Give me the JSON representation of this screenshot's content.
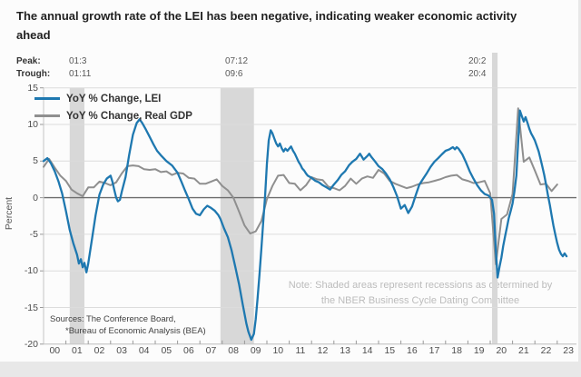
{
  "title": {
    "line1": "The annual growth rate of the LEI has been negative, indicating weaker economic activity",
    "line2": "ahead"
  },
  "header": {
    "peak_label": "Peak:",
    "trough_label": "Trough:",
    "recessions": [
      {
        "peak": "01:3",
        "trough": "01:11"
      },
      {
        "peak": "07:12",
        "trough": "09:6"
      },
      {
        "peak": "20:2",
        "trough": "20:4"
      }
    ]
  },
  "notes": {
    "note_line1": "Note: Shaded areas represent recessions as determined by",
    "note_line2": "the NBER Business Cycle Dating Committee",
    "sources_line1": "Sources: The Conference Board,",
    "sources_line2": "*Bureau of Economic Analysis (BEA)"
  },
  "colors": {
    "lei_line": "#1e78b0",
    "gdp_line": "#8f8f8f",
    "recession_band": "#d8d8d8",
    "gridline": "#dcdcdc",
    "zero_line": "#6d6d6d",
    "axis": "#c4c4c4"
  },
  "chart_data": {
    "type": "line",
    "ylabel": "Percent",
    "ylim": [
      -20,
      15
    ],
    "ytick_step": 5,
    "xlim": [
      2000,
      2023.5
    ],
    "grid": true,
    "legend_position": "top-left",
    "xtick_labels": [
      "00",
      "01",
      "02",
      "03",
      "04",
      "05",
      "06",
      "07",
      "08",
      "09",
      "10",
      "11",
      "12",
      "13",
      "14",
      "15",
      "16",
      "17",
      "18",
      "19",
      "20",
      "21",
      "22",
      "23"
    ],
    "recession_bands": [
      {
        "from": 2001.17,
        "to": 2001.83
      },
      {
        "from": 2007.92,
        "to": 2009.42
      },
      {
        "from": 2020.08,
        "to": 2020.33,
        "extends_to_header": true
      }
    ],
    "series": [
      {
        "name": "YoY % Change, LEI",
        "color": "#1e78b0",
        "points": [
          [
            2000.0,
            5.0
          ],
          [
            2000.17,
            5.4
          ],
          [
            2000.33,
            4.7
          ],
          [
            2000.5,
            3.6
          ],
          [
            2000.67,
            2.2
          ],
          [
            2000.83,
            0.6
          ],
          [
            2001.0,
            -1.8
          ],
          [
            2001.17,
            -4.4
          ],
          [
            2001.33,
            -6.2
          ],
          [
            2001.5,
            -7.8
          ],
          [
            2001.58,
            -9.0
          ],
          [
            2001.67,
            -8.4
          ],
          [
            2001.75,
            -9.5
          ],
          [
            2001.83,
            -8.9
          ],
          [
            2001.92,
            -10.2
          ],
          [
            2002.0,
            -9.0
          ],
          [
            2002.17,
            -5.6
          ],
          [
            2002.33,
            -2.4
          ],
          [
            2002.5,
            0.4
          ],
          [
            2002.67,
            1.8
          ],
          [
            2002.83,
            2.6
          ],
          [
            2003.0,
            3.0
          ],
          [
            2003.08,
            2.2
          ],
          [
            2003.17,
            1.0
          ],
          [
            2003.25,
            0.0
          ],
          [
            2003.33,
            -0.5
          ],
          [
            2003.42,
            -0.3
          ],
          [
            2003.5,
            0.8
          ],
          [
            2003.67,
            2.8
          ],
          [
            2003.83,
            5.8
          ],
          [
            2004.0,
            8.6
          ],
          [
            2004.17,
            10.2
          ],
          [
            2004.3,
            10.7
          ],
          [
            2004.42,
            10.2
          ],
          [
            2004.58,
            9.3
          ],
          [
            2004.75,
            8.3
          ],
          [
            2004.92,
            7.3
          ],
          [
            2005.08,
            6.4
          ],
          [
            2005.25,
            5.8
          ],
          [
            2005.5,
            5.0
          ],
          [
            2005.75,
            4.4
          ],
          [
            2006.0,
            3.4
          ],
          [
            2006.17,
            2.2
          ],
          [
            2006.33,
            1.0
          ],
          [
            2006.5,
            -0.2
          ],
          [
            2006.67,
            -1.5
          ],
          [
            2006.83,
            -2.2
          ],
          [
            2007.0,
            -2.4
          ],
          [
            2007.17,
            -1.6
          ],
          [
            2007.33,
            -1.1
          ],
          [
            2007.5,
            -1.4
          ],
          [
            2007.67,
            -1.8
          ],
          [
            2007.83,
            -2.4
          ],
          [
            2007.92,
            -2.9
          ],
          [
            2008.08,
            -4.2
          ],
          [
            2008.25,
            -5.4
          ],
          [
            2008.42,
            -7.2
          ],
          [
            2008.58,
            -9.4
          ],
          [
            2008.75,
            -11.8
          ],
          [
            2008.92,
            -14.6
          ],
          [
            2009.08,
            -17.2
          ],
          [
            2009.17,
            -18.3
          ],
          [
            2009.3,
            -19.4
          ],
          [
            2009.42,
            -18.6
          ],
          [
            2009.5,
            -16.6
          ],
          [
            2009.58,
            -13.8
          ],
          [
            2009.67,
            -10.4
          ],
          [
            2009.75,
            -7.0
          ],
          [
            2009.83,
            -3.6
          ],
          [
            2009.92,
            0.2
          ],
          [
            2010.0,
            4.6
          ],
          [
            2010.08,
            7.8
          ],
          [
            2010.17,
            9.2
          ],
          [
            2010.25,
            8.8
          ],
          [
            2010.33,
            8.1
          ],
          [
            2010.42,
            7.4
          ],
          [
            2010.5,
            7.0
          ],
          [
            2010.58,
            7.4
          ],
          [
            2010.67,
            6.7
          ],
          [
            2010.75,
            6.3
          ],
          [
            2010.83,
            6.7
          ],
          [
            2010.92,
            6.4
          ],
          [
            2011.0,
            6.7
          ],
          [
            2011.08,
            7.0
          ],
          [
            2011.17,
            6.4
          ],
          [
            2011.25,
            6.0
          ],
          [
            2011.33,
            5.5
          ],
          [
            2011.42,
            4.9
          ],
          [
            2011.5,
            4.5
          ],
          [
            2011.58,
            4.0
          ],
          [
            2011.67,
            3.7
          ],
          [
            2011.75,
            3.3
          ],
          [
            2011.83,
            3.0
          ],
          [
            2012.0,
            2.7
          ],
          [
            2012.17,
            2.3
          ],
          [
            2012.33,
            2.1
          ],
          [
            2012.5,
            1.7
          ],
          [
            2012.67,
            1.4
          ],
          [
            2012.83,
            1.1
          ],
          [
            2013.0,
            1.8
          ],
          [
            2013.17,
            2.4
          ],
          [
            2013.33,
            3.1
          ],
          [
            2013.5,
            3.6
          ],
          [
            2013.67,
            4.4
          ],
          [
            2013.83,
            4.9
          ],
          [
            2014.0,
            5.3
          ],
          [
            2014.17,
            6.0
          ],
          [
            2014.25,
            5.6
          ],
          [
            2014.33,
            5.2
          ],
          [
            2014.5,
            5.7
          ],
          [
            2014.58,
            6.0
          ],
          [
            2014.67,
            5.6
          ],
          [
            2014.83,
            5.0
          ],
          [
            2015.0,
            4.3
          ],
          [
            2015.17,
            3.9
          ],
          [
            2015.33,
            3.3
          ],
          [
            2015.5,
            2.5
          ],
          [
            2015.67,
            1.4
          ],
          [
            2015.83,
            0.2
          ],
          [
            2016.0,
            -1.5
          ],
          [
            2016.17,
            -1.0
          ],
          [
            2016.33,
            -2.1
          ],
          [
            2016.5,
            -1.2
          ],
          [
            2016.67,
            0.4
          ],
          [
            2016.83,
            1.8
          ],
          [
            2017.0,
            2.6
          ],
          [
            2017.17,
            3.4
          ],
          [
            2017.33,
            4.2
          ],
          [
            2017.5,
            4.9
          ],
          [
            2017.67,
            5.4
          ],
          [
            2017.83,
            5.9
          ],
          [
            2018.0,
            6.4
          ],
          [
            2018.17,
            6.6
          ],
          [
            2018.33,
            6.9
          ],
          [
            2018.42,
            6.6
          ],
          [
            2018.5,
            6.9
          ],
          [
            2018.58,
            6.7
          ],
          [
            2018.75,
            5.9
          ],
          [
            2018.92,
            4.8
          ],
          [
            2019.08,
            3.6
          ],
          [
            2019.25,
            2.6
          ],
          [
            2019.42,
            1.7
          ],
          [
            2019.58,
            1.0
          ],
          [
            2019.75,
            0.5
          ],
          [
            2019.92,
            0.3
          ],
          [
            2020.08,
            -0.3
          ],
          [
            2020.17,
            -2.2
          ],
          [
            2020.25,
            -7.2
          ],
          [
            2020.33,
            -10.9
          ],
          [
            2020.42,
            -9.4
          ],
          [
            2020.5,
            -8.2
          ],
          [
            2020.58,
            -6.6
          ],
          [
            2020.67,
            -5.2
          ],
          [
            2020.75,
            -4.0
          ],
          [
            2020.83,
            -2.8
          ],
          [
            2020.92,
            -1.8
          ],
          [
            2021.0,
            -0.8
          ],
          [
            2021.08,
            0.8
          ],
          [
            2021.17,
            3.0
          ],
          [
            2021.25,
            7.6
          ],
          [
            2021.33,
            11.9
          ],
          [
            2021.42,
            11.1
          ],
          [
            2021.5,
            10.4
          ],
          [
            2021.58,
            11.0
          ],
          [
            2021.67,
            10.2
          ],
          [
            2021.75,
            9.4
          ],
          [
            2021.83,
            8.8
          ],
          [
            2021.92,
            8.3
          ],
          [
            2022.0,
            7.8
          ],
          [
            2022.08,
            7.1
          ],
          [
            2022.17,
            6.3
          ],
          [
            2022.25,
            5.3
          ],
          [
            2022.33,
            4.3
          ],
          [
            2022.42,
            3.1
          ],
          [
            2022.5,
            1.8
          ],
          [
            2022.58,
            0.4
          ],
          [
            2022.67,
            -1.0
          ],
          [
            2022.75,
            -2.4
          ],
          [
            2022.83,
            -3.8
          ],
          [
            2022.92,
            -5.1
          ],
          [
            2023.0,
            -6.2
          ],
          [
            2023.08,
            -7.1
          ],
          [
            2023.17,
            -7.7
          ],
          [
            2023.25,
            -8.0
          ],
          [
            2023.33,
            -7.6
          ],
          [
            2023.42,
            -8.0
          ]
        ]
      },
      {
        "name": "YoY % Change, Real GDP",
        "color": "#8f8f8f",
        "points": [
          [
            2000.0,
            4.2
          ],
          [
            2000.25,
            5.3
          ],
          [
            2000.5,
            4.1
          ],
          [
            2000.75,
            3.0
          ],
          [
            2001.0,
            2.3
          ],
          [
            2001.25,
            1.1
          ],
          [
            2001.5,
            0.6
          ],
          [
            2001.75,
            0.2
          ],
          [
            2002.0,
            1.4
          ],
          [
            2002.25,
            1.4
          ],
          [
            2002.5,
            2.2
          ],
          [
            2002.75,
            2.0
          ],
          [
            2003.0,
            1.7
          ],
          [
            2003.25,
            2.1
          ],
          [
            2003.5,
            3.3
          ],
          [
            2003.75,
            4.3
          ],
          [
            2004.0,
            4.4
          ],
          [
            2004.25,
            4.3
          ],
          [
            2004.5,
            3.9
          ],
          [
            2004.75,
            3.8
          ],
          [
            2005.0,
            3.9
          ],
          [
            2005.25,
            3.5
          ],
          [
            2005.5,
            3.6
          ],
          [
            2005.75,
            3.1
          ],
          [
            2006.0,
            3.4
          ],
          [
            2006.25,
            3.3
          ],
          [
            2006.5,
            2.7
          ],
          [
            2006.75,
            2.6
          ],
          [
            2007.0,
            1.9
          ],
          [
            2007.25,
            1.9
          ],
          [
            2007.5,
            2.2
          ],
          [
            2007.75,
            2.5
          ],
          [
            2008.0,
            1.6
          ],
          [
            2008.25,
            1.0
          ],
          [
            2008.5,
            0.0
          ],
          [
            2008.75,
            -1.9
          ],
          [
            2009.0,
            -3.8
          ],
          [
            2009.25,
            -4.9
          ],
          [
            2009.5,
            -4.6
          ],
          [
            2009.75,
            -3.2
          ],
          [
            2010.0,
            -0.2
          ],
          [
            2010.25,
            1.6
          ],
          [
            2010.5,
            3.0
          ],
          [
            2010.75,
            3.1
          ],
          [
            2011.0,
            2.0
          ],
          [
            2011.25,
            1.9
          ],
          [
            2011.5,
            1.0
          ],
          [
            2011.75,
            1.7
          ],
          [
            2012.0,
            2.8
          ],
          [
            2012.25,
            2.5
          ],
          [
            2012.5,
            2.4
          ],
          [
            2012.75,
            1.5
          ],
          [
            2013.0,
            1.3
          ],
          [
            2013.25,
            1.0
          ],
          [
            2013.5,
            1.6
          ],
          [
            2013.75,
            2.6
          ],
          [
            2014.0,
            1.9
          ],
          [
            2014.25,
            2.6
          ],
          [
            2014.5,
            2.9
          ],
          [
            2014.75,
            2.7
          ],
          [
            2015.0,
            3.8
          ],
          [
            2015.25,
            3.3
          ],
          [
            2015.5,
            2.3
          ],
          [
            2015.75,
            1.9
          ],
          [
            2016.0,
            1.6
          ],
          [
            2016.25,
            1.3
          ],
          [
            2016.5,
            1.5
          ],
          [
            2016.75,
            1.8
          ],
          [
            2017.0,
            2.0
          ],
          [
            2017.25,
            2.1
          ],
          [
            2017.5,
            2.3
          ],
          [
            2017.75,
            2.5
          ],
          [
            2018.0,
            2.8
          ],
          [
            2018.25,
            3.0
          ],
          [
            2018.5,
            3.1
          ],
          [
            2018.75,
            2.5
          ],
          [
            2019.0,
            2.3
          ],
          [
            2019.25,
            2.0
          ],
          [
            2019.5,
            2.1
          ],
          [
            2019.75,
            2.3
          ],
          [
            2020.0,
            0.6
          ],
          [
            2020.25,
            -9.1
          ],
          [
            2020.5,
            -2.9
          ],
          [
            2020.75,
            -2.3
          ],
          [
            2021.0,
            0.5
          ],
          [
            2021.25,
            12.2
          ],
          [
            2021.5,
            4.9
          ],
          [
            2021.75,
            5.5
          ],
          [
            2022.0,
            3.7
          ],
          [
            2022.25,
            1.8
          ],
          [
            2022.5,
            1.9
          ],
          [
            2022.75,
            0.9
          ],
          [
            2023.0,
            1.8
          ]
        ]
      }
    ]
  }
}
